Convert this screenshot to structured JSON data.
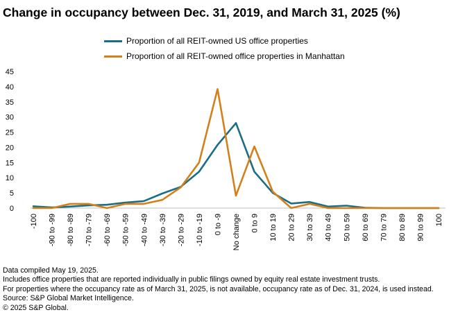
{
  "chart_data": {
    "type": "line",
    "title": "Change in occupancy between Dec. 31, 2019, and March 31, 2025 (%)",
    "categories": [
      "-100",
      "-90 to -99",
      "-80 to -89",
      "-70 to -79",
      "-60 to -69",
      "-50 to -59",
      "-40 to -49",
      "-30 to -39",
      "-20 to -29",
      "-10 to -19",
      "0 to -9",
      "No change",
      "0 to 9",
      "10 to 19",
      "20 to 29",
      "30 to 39",
      "40 to 49",
      "50 to 59",
      "60 to 69",
      "70 to 79",
      "80 to 89",
      "90 to 99",
      "100"
    ],
    "series": [
      {
        "name": "Proportion of all REIT-owned US office properties",
        "color": "#1a6e84",
        "values": [
          0.6,
          0.2,
          0.5,
          0.9,
          1.1,
          1.8,
          2.3,
          4.8,
          7.0,
          12.0,
          20.8,
          28.0,
          12.0,
          5.0,
          1.5,
          2.0,
          0.5,
          0.8,
          0.1,
          0.0,
          0.0,
          0.0,
          0.0
        ]
      },
      {
        "name": "Proportion of all REIT-owned office properties in Manhattan",
        "color": "#d4801a",
        "values": [
          0.0,
          0.0,
          1.4,
          1.4,
          0.0,
          1.4,
          1.4,
          2.7,
          6.8,
          15.0,
          39.2,
          4.1,
          20.3,
          5.4,
          0.0,
          1.4,
          0.0,
          0.0,
          0.0,
          0.0,
          0.0,
          0.0,
          0.0
        ]
      }
    ],
    "ylim": [
      0,
      45
    ],
    "yticks": [
      0,
      5,
      10,
      15,
      20,
      25,
      30,
      35,
      40,
      45
    ],
    "xlabel": "",
    "ylabel": "",
    "grid": false,
    "legend_position": "top"
  },
  "notes": [
    "Data compiled May 19, 2025.",
    "Includes office properties that are reported individually in public filings owned by equity real estate investment trusts.",
    "For properties where the occupancy rate as of March 31, 2025, is not available, occupancy rate as of Dec. 31, 2024, is used instead.",
    "Source: S&P Global Market Intelligence.",
    "© 2025 S&P Global."
  ]
}
